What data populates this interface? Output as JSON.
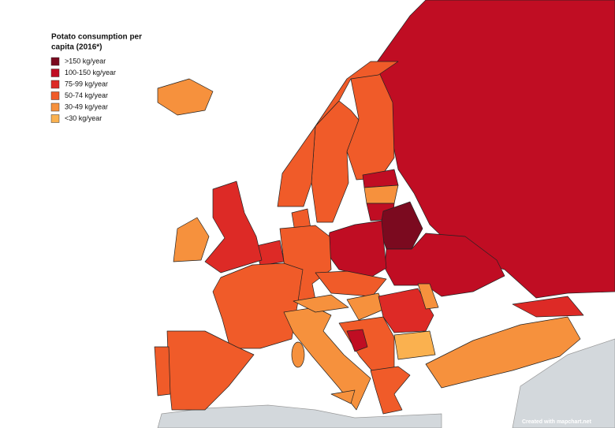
{
  "legend": {
    "title_lines": [
      "Potato consumption per",
      "capita (2016*)"
    ],
    "items": [
      {
        "label": ">150 kg/year",
        "color": "#7b0a1f"
      },
      {
        "label": "100-150 kg/year",
        "color": "#c00d23"
      },
      {
        "label": "75-99 kg/year",
        "color": "#dd2a26"
      },
      {
        "label": "50-74 kg/year",
        "color": "#f05b29"
      },
      {
        "label": "30-49 kg/year",
        "color": "#f6913d"
      },
      {
        "label": "<30 kg/year",
        "color": "#fab14f"
      }
    ]
  },
  "footer": "Created with mapchart.net"
}
